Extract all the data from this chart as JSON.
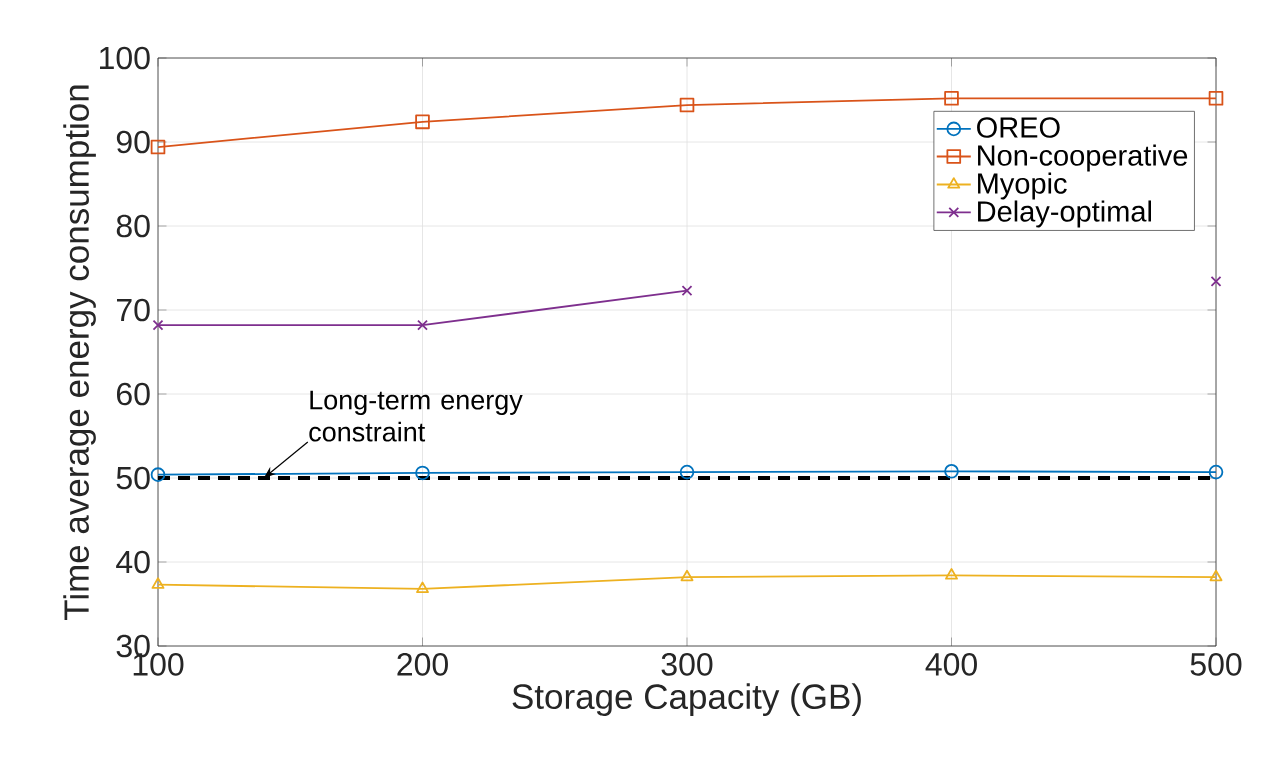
{
  "chart_data": {
    "type": "line",
    "xlabel": "Storage Capacity (GB)",
    "ylabel": "Time average energy consumption",
    "x": [
      100,
      200,
      300,
      400,
      500
    ],
    "series": [
      {
        "name": "OREO",
        "color": "#0072bd",
        "marker": "circle",
        "values": [
          50.4,
          50.6,
          50.7,
          50.8,
          50.7
        ]
      },
      {
        "name": "Non-cooperative",
        "color": "#d95319",
        "marker": "square",
        "values": [
          89.4,
          92.4,
          94.4,
          95.2,
          95.2
        ]
      },
      {
        "name": "Myopic",
        "color": "#edb120",
        "marker": "triangle",
        "values": [
          37.3,
          36.8,
          38.2,
          38.4,
          38.2
        ]
      },
      {
        "name": "Delay-optimal",
        "color": "#7e2f8e",
        "marker": "cross",
        "values": [
          68.2,
          68.2,
          72.3,
          null,
          73.4
        ]
      }
    ],
    "xlim": [
      100,
      500
    ],
    "xticks": [
      100,
      200,
      300,
      400,
      500
    ],
    "ylim": [
      30,
      100
    ],
    "yticks": [
      30,
      40,
      50,
      60,
      70,
      80,
      90,
      100
    ],
    "grid": true,
    "legend": "top right",
    "line_style": "solid",
    "ref_lines": [
      {
        "axis": "y",
        "value": 50,
        "color": "#000000",
        "line_style": "dashed"
      }
    ],
    "annotations": [
      {
        "text": "Long-term energy constraint",
        "x": 140,
        "y": 50
      }
    ]
  }
}
